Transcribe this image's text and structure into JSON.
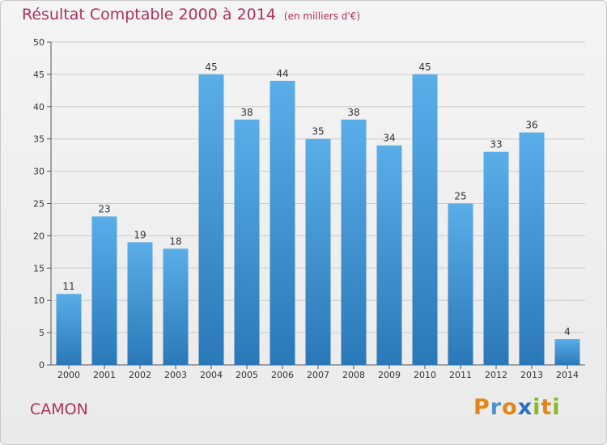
{
  "title": "Résultat Comptable 2000 à 2014",
  "title_unit": "(en milliers d'€)",
  "commune": "CAMON",
  "logo": {
    "text": "Proxiti",
    "letters": [
      "P",
      "r",
      "o",
      "x",
      "i",
      "t",
      "i"
    ]
  },
  "colors": {
    "title": "#b0305a",
    "bar_top": "#5aaee8",
    "bar_bottom": "#2a78b8",
    "grid": "#cccccc"
  },
  "chart_data": {
    "type": "bar",
    "title": "Résultat Comptable 2000 à 2014",
    "subtitle": "(en milliers d'€)",
    "categories": [
      "2000",
      "2001",
      "2002",
      "2003",
      "2004",
      "2005",
      "2006",
      "2007",
      "2008",
      "2009",
      "2010",
      "2011",
      "2012",
      "2013",
      "2014"
    ],
    "values": [
      11,
      23,
      19,
      18,
      45,
      38,
      44,
      35,
      38,
      34,
      45,
      25,
      33,
      36,
      4
    ],
    "ylim": [
      0,
      50
    ],
    "yticks": [
      0,
      5,
      10,
      15,
      20,
      25,
      30,
      35,
      40,
      45,
      50
    ],
    "grid": true,
    "data_labels": true
  }
}
